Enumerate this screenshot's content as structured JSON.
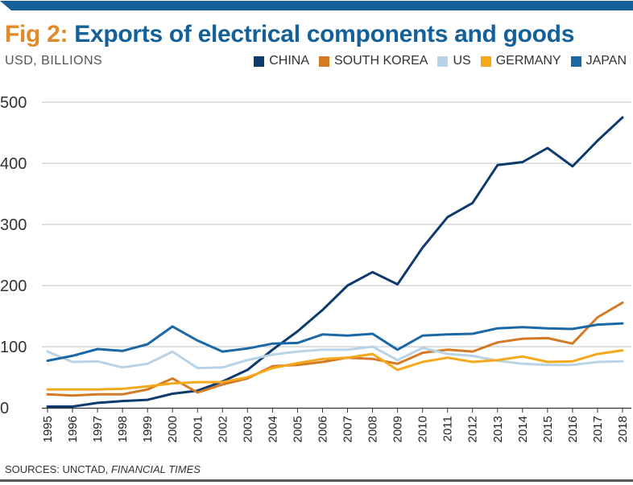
{
  "header": {
    "title_lead": "Fig 2:",
    "title_main": "Exports of electrical components and goods",
    "unit": "USD, BILLIONS"
  },
  "footer": {
    "sources_prefix": "SOURCES: UNCTAD,",
    "sources_italic": "FINANCIAL TIMES"
  },
  "colors": {
    "top_bar": "#13609a",
    "title_accent": "#e08a2a",
    "title_main": "#13609a",
    "grid": "#bfbfbf"
  },
  "chart_data": {
    "type": "line",
    "title": "Exports of electrical components and goods",
    "ylabel": "USD, BILLIONS",
    "xlabel": "",
    "ylim": [
      0,
      500
    ],
    "yticks": [
      "0",
      "100",
      "200",
      "300",
      "400",
      "500"
    ],
    "grid": true,
    "legend_position": "top-right",
    "categories": [
      "1995",
      "1996",
      "1997",
      "1998",
      "1999",
      "2000",
      "2001",
      "2002",
      "2003",
      "2004",
      "2005",
      "2006",
      "2007",
      "2008",
      "2009",
      "2010",
      "2011",
      "2012",
      "2013",
      "2014",
      "2015",
      "2016",
      "2017",
      "2018"
    ],
    "series": [
      {
        "name": "CHINA",
        "color": "#0d3b6e",
        "values": [
          2,
          2,
          8,
          11,
          13,
          23,
          28,
          43,
          62,
          95,
          125,
          160,
          200,
          222,
          202,
          262,
          312,
          335,
          397,
          402,
          425,
          395,
          437,
          475
        ]
      },
      {
        "name": "SOUTH KOREA",
        "color": "#d47a24",
        "values": [
          22,
          20,
          22,
          22,
          30,
          48,
          25,
          38,
          48,
          68,
          70,
          75,
          82,
          80,
          72,
          90,
          95,
          92,
          107,
          113,
          114,
          105,
          148,
          172
        ]
      },
      {
        "name": "US",
        "color": "#b8d2e6",
        "values": [
          92,
          75,
          76,
          66,
          72,
          92,
          65,
          66,
          78,
          87,
          92,
          95,
          95,
          100,
          78,
          98,
          88,
          85,
          77,
          72,
          70,
          70,
          75,
          76
        ]
      },
      {
        "name": "GERMANY",
        "color": "#f5a81c",
        "values": [
          30,
          30,
          30,
          31,
          35,
          40,
          42,
          42,
          50,
          65,
          73,
          80,
          82,
          88,
          62,
          75,
          82,
          75,
          78,
          84,
          75,
          76,
          88,
          94
        ]
      },
      {
        "name": "JAPAN",
        "color": "#1b68a6",
        "values": [
          77,
          85,
          96,
          93,
          104,
          133,
          110,
          92,
          97,
          105,
          106,
          120,
          118,
          121,
          95,
          118,
          120,
          121,
          130,
          132,
          130,
          129,
          136,
          138
        ]
      }
    ]
  }
}
